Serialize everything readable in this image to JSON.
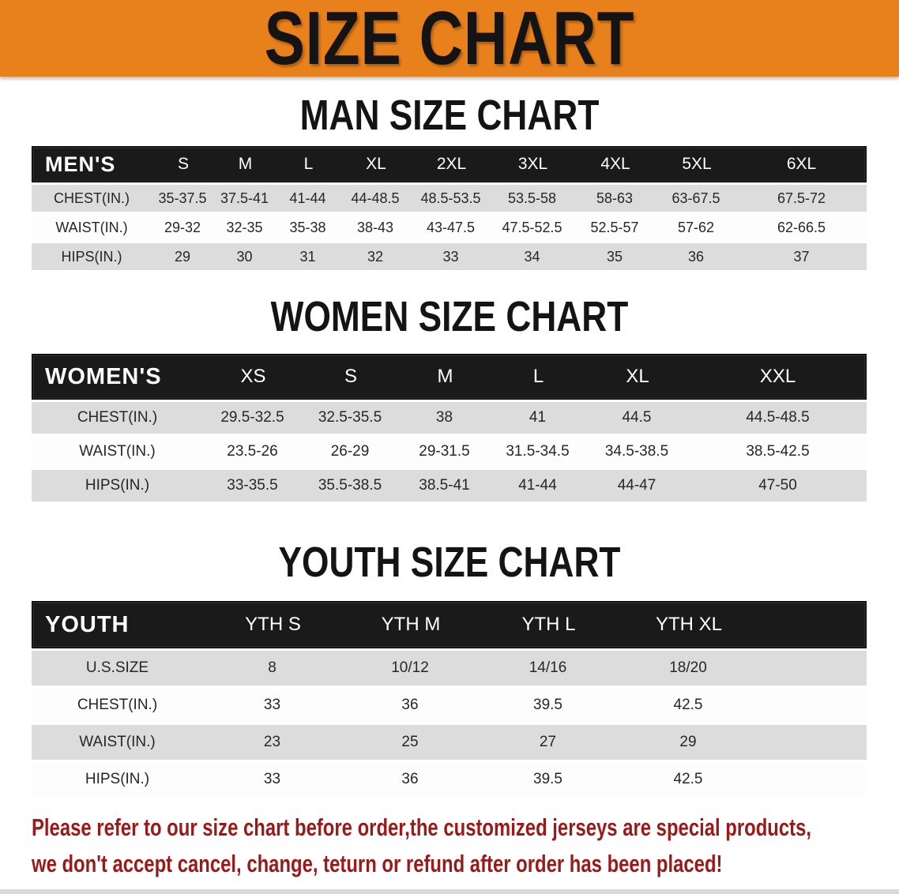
{
  "banner": {
    "title": "SIZE CHART",
    "bg_color": "#E8811B",
    "text_color": "#141414"
  },
  "sections": [
    {
      "heading": "MAN SIZE CHART",
      "header_label": "MEN'S",
      "columns": [
        "S",
        "M",
        "L",
        "XL",
        "2XL",
        "3XL",
        "4XL",
        "5XL",
        "6XL"
      ],
      "rows": [
        {
          "label": "CHEST(IN.)",
          "values": [
            "35-37.5",
            "37.5-41",
            "41-44",
            "44-48.5",
            "48.5-53.5",
            "53.5-58",
            "58-63",
            "63-67.5",
            "67.5-72"
          ]
        },
        {
          "label": "WAIST(IN.)",
          "values": [
            "29-32",
            "32-35",
            "35-38",
            "38-43",
            "43-47.5",
            "47.5-52.5",
            "52.5-57",
            "57-62",
            "62-66.5"
          ]
        },
        {
          "label": "HIPS(IN.)",
          "values": [
            "29",
            "30",
            "31",
            "32",
            "33",
            "34",
            "35",
            "36",
            "37"
          ]
        }
      ]
    },
    {
      "heading": "WOMEN SIZE CHART",
      "header_label": "WOMEN'S",
      "columns": [
        "XS",
        "S",
        "M",
        "L",
        "XL",
        "XXL"
      ],
      "rows": [
        {
          "label": "CHEST(IN.)",
          "values": [
            "29.5-32.5",
            "32.5-35.5",
            "38",
            "41",
            "44.5",
            "44.5-48.5"
          ]
        },
        {
          "label": "WAIST(IN.)",
          "values": [
            "23.5-26",
            "26-29",
            "29-31.5",
            "31.5-34.5",
            "34.5-38.5",
            "38.5-42.5"
          ]
        },
        {
          "label": "HIPS(IN.)",
          "values": [
            "33-35.5",
            "35.5-38.5",
            "38.5-41",
            "41-44",
            "44-47",
            "47-50"
          ]
        }
      ]
    },
    {
      "heading": "YOUTH SIZE CHART",
      "header_label": "YOUTH",
      "columns": [
        "YTH S",
        "YTH M",
        "YTH L",
        "YTH XL"
      ],
      "rows": [
        {
          "label": "U.S.SIZE",
          "values": [
            "8",
            "10/12",
            "14/16",
            "18/20"
          ]
        },
        {
          "label": "CHEST(IN.)",
          "values": [
            "33",
            "36",
            "39.5",
            "42.5"
          ]
        },
        {
          "label": "WAIST(IN.)",
          "values": [
            "23",
            "25",
            "27",
            "29"
          ]
        },
        {
          "label": "HIPS(IN.)",
          "values": [
            "33",
            "36",
            "39.5",
            "42.5"
          ]
        }
      ]
    }
  ],
  "disclaimer": {
    "line1": "Please refer to our size chart before order,the customized jerseys are special products,",
    "line2": "we don't accept cancel, change, teturn or refund after order has been placed!",
    "color": "#9A1A1A"
  },
  "colors": {
    "banner_orange": "#E8811B",
    "table_header_black": "#1A1A1A",
    "row_gray": "#DCDCDC",
    "row_white": "#FDFDFD",
    "disclaimer_red": "#9A1A1A"
  }
}
